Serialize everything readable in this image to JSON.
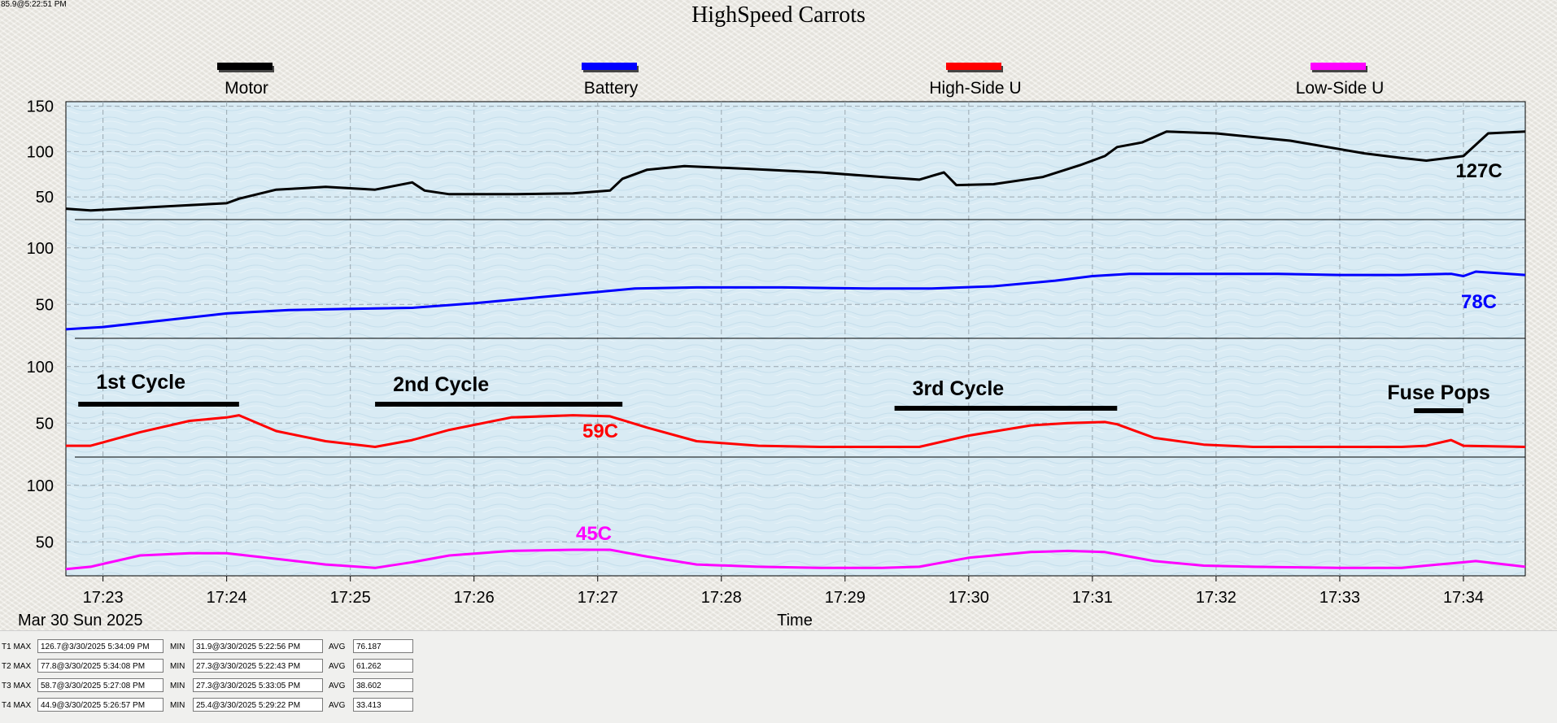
{
  "stamp": "85.9@5:22:51 PM",
  "chart_data": {
    "type": "line",
    "title": "HighSpeed Carrots",
    "xlabel": "Time",
    "date_label": "Mar 30 Sun 2025",
    "x_ticks": [
      "17:23",
      "17:24",
      "17:25",
      "17:26",
      "17:27",
      "17:28",
      "17:29",
      "17:30",
      "17:31",
      "17:32",
      "17:33",
      "17:34"
    ],
    "xlim": [
      "17:22.7",
      "17:34.5"
    ],
    "grid": true,
    "legend_position": "top",
    "series": [
      {
        "name": "Motor",
        "color": "#000000",
        "end_label": "127C",
        "y_ticks": [
          "150",
          "100",
          "50"
        ],
        "ylim": [
          25,
          155
        ],
        "x": [
          22.7,
          22.9,
          23.3,
          23.7,
          24.0,
          24.1,
          24.4,
          24.8,
          25.2,
          25.5,
          25.6,
          25.8,
          26.3,
          26.8,
          27.1,
          27.2,
          27.4,
          27.7,
          28.2,
          28.8,
          29.3,
          29.6,
          29.8,
          29.9,
          30.2,
          30.6,
          30.9,
          31.1,
          31.2,
          31.4,
          31.6,
          32.0,
          32.6,
          33.2,
          33.5,
          33.7,
          34.0,
          34.2,
          34.5
        ],
        "y": [
          37,
          35,
          38,
          41,
          43,
          48,
          58,
          61,
          58,
          66,
          57,
          53,
          53,
          54,
          57,
          70,
          80,
          84,
          81,
          77,
          72,
          69,
          77,
          63,
          64,
          72,
          85,
          95,
          105,
          110,
          122,
          120,
          112,
          98,
          93,
          90,
          95,
          120,
          122
        ]
      },
      {
        "name": "Battery",
        "color": "#0000ff",
        "end_label": "78C",
        "y_ticks": [
          "100",
          "50"
        ],
        "ylim": [
          20,
          125
        ],
        "x": [
          22.7,
          23.0,
          23.5,
          24.0,
          24.5,
          25.0,
          25.5,
          26.0,
          26.5,
          27.0,
          27.3,
          27.8,
          28.5,
          29.2,
          29.7,
          30.2,
          30.7,
          31.0,
          31.3,
          31.8,
          32.5,
          33.0,
          33.5,
          33.9,
          34.0,
          34.1,
          34.5
        ],
        "y": [
          28,
          30,
          36,
          42,
          45,
          46,
          47,
          51,
          56,
          61,
          64,
          65,
          65,
          64,
          64,
          66,
          71,
          75,
          77,
          77,
          77,
          76,
          76,
          77,
          75,
          79,
          76
        ]
      },
      {
        "name": "High-Side U",
        "color": "#ff0000",
        "end_label": "59C",
        "y_ticks": [
          "100",
          "50"
        ],
        "ylim": [
          20,
          125
        ],
        "x": [
          22.7,
          22.9,
          23.3,
          23.7,
          24.0,
          24.1,
          24.4,
          24.8,
          25.2,
          25.5,
          25.8,
          26.3,
          26.8,
          27.1,
          27.4,
          27.8,
          28.3,
          28.8,
          29.3,
          29.6,
          30.0,
          30.5,
          30.8,
          31.1,
          31.2,
          31.5,
          31.9,
          32.3,
          33.0,
          33.5,
          33.7,
          33.9,
          34.0,
          34.5
        ],
        "y": [
          30,
          30,
          42,
          52,
          55,
          57,
          43,
          34,
          29,
          35,
          44,
          55,
          57,
          56,
          46,
          34,
          30,
          29,
          29,
          29,
          39,
          48,
          50,
          51,
          49,
          37,
          31,
          29,
          29,
          29,
          30,
          35,
          30,
          29
        ]
      },
      {
        "name": "Low-Side U",
        "color": "#ff00ff",
        "end_label": "45C",
        "y_ticks": [
          "100",
          "50"
        ],
        "ylim": [
          20,
          125
        ],
        "x": [
          22.7,
          22.9,
          23.3,
          23.7,
          24.0,
          24.4,
          24.8,
          25.2,
          25.5,
          25.8,
          26.3,
          26.8,
          27.1,
          27.4,
          27.8,
          28.3,
          28.8,
          29.3,
          29.6,
          30.0,
          30.5,
          30.8,
          31.1,
          31.5,
          31.9,
          32.3,
          33.0,
          33.5,
          33.9,
          34.1,
          34.5
        ],
        "y": [
          26,
          28,
          38,
          40,
          40,
          35,
          30,
          27,
          32,
          38,
          42,
          43,
          43,
          37,
          30,
          28,
          27,
          27,
          28,
          36,
          41,
          42,
          41,
          33,
          29,
          28,
          27,
          27,
          31,
          33,
          28
        ]
      }
    ],
    "annotations": [
      {
        "text": "1st Cycle",
        "x1": 22.8,
        "x2": 24.1
      },
      {
        "text": "2nd Cycle",
        "x1": 25.2,
        "x2": 27.2
      },
      {
        "text": "3rd Cycle",
        "x1": 29.4,
        "x2": 31.2
      },
      {
        "text": "Fuse Pops",
        "x1": 33.6,
        "x2": 34.0
      }
    ]
  },
  "stats": [
    {
      "label": "T1 MAX",
      "max": "126.7@3/30/2025 5:34:09 PM",
      "min_label": "MIN",
      "min": "31.9@3/30/2025 5:22:56 PM",
      "avg_label": "AVG",
      "avg": "76.187"
    },
    {
      "label": "T2 MAX",
      "max": "77.8@3/30/2025 5:34:08 PM",
      "min_label": "MIN",
      "min": "27.3@3/30/2025 5:22:43 PM",
      "avg_label": "AVG",
      "avg": "61.262"
    },
    {
      "label": "T3 MAX",
      "max": "58.7@3/30/2025 5:27:08 PM",
      "min_label": "MIN",
      "min": "27.3@3/30/2025 5:33:05 PM",
      "avg_label": "AVG",
      "avg": "38.602"
    },
    {
      "label": "T4 MAX",
      "max": "44.9@3/30/2025 5:26:57 PM",
      "min_label": "MIN",
      "min": "25.4@3/30/2025 5:29:22 PM",
      "avg_label": "AVG",
      "avg": "33.413"
    }
  ]
}
